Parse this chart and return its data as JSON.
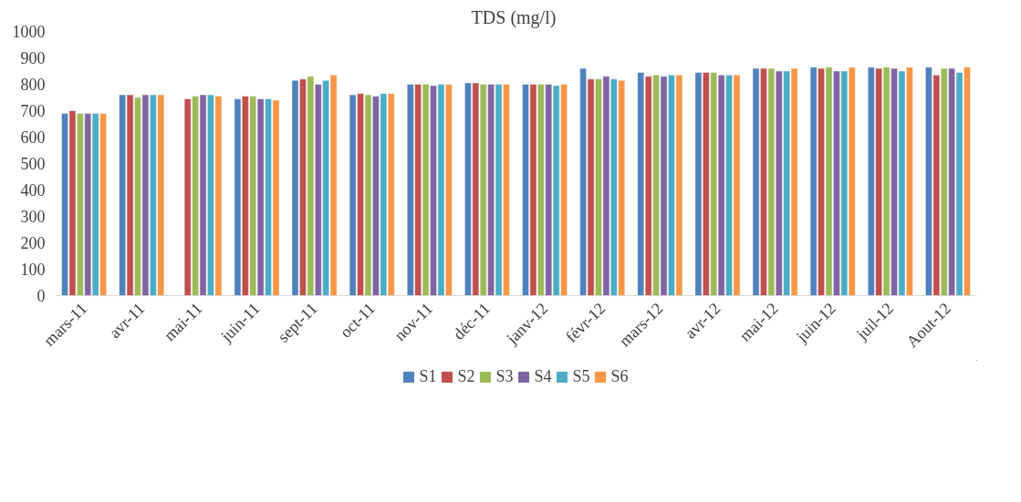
{
  "chart_data": {
    "type": "bar",
    "title": "TDS  (mg/l)",
    "categories": [
      "mars-11",
      "avr-11",
      "mai-11",
      "juin-11",
      "sept-11",
      "oct-11",
      "nov-11",
      "déc-11",
      "janv-12",
      "févr-12",
      "mars-12",
      "avr-12",
      "mai-12",
      "juin-12",
      "juil-12",
      "Aout-12"
    ],
    "series": [
      {
        "name": "S1",
        "color": "#4f81bd",
        "values": [
          690,
          760,
          null,
          745,
          815,
          760,
          800,
          805,
          800,
          860,
          845,
          845,
          860,
          865,
          865,
          865
        ]
      },
      {
        "name": "S2",
        "color": "#c0504d",
        "values": [
          700,
          760,
          745,
          755,
          820,
          765,
          800,
          805,
          800,
          820,
          830,
          845,
          860,
          860,
          860,
          835
        ]
      },
      {
        "name": "S3",
        "color": "#9bbb59",
        "values": [
          690,
          750,
          755,
          755,
          830,
          760,
          800,
          800,
          800,
          820,
          835,
          845,
          860,
          865,
          865,
          860
        ]
      },
      {
        "name": "S4",
        "color": "#8064a2",
        "values": [
          690,
          760,
          760,
          745,
          800,
          755,
          795,
          800,
          800,
          830,
          830,
          835,
          850,
          850,
          860,
          860
        ]
      },
      {
        "name": "S5",
        "color": "#4bacc6",
        "values": [
          690,
          760,
          760,
          745,
          815,
          765,
          800,
          800,
          795,
          820,
          835,
          835,
          850,
          850,
          850,
          845
        ]
      },
      {
        "name": "S6",
        "color": "#f79646",
        "values": [
          690,
          760,
          755,
          740,
          835,
          765,
          800,
          800,
          800,
          815,
          835,
          835,
          860,
          865,
          865,
          865
        ]
      }
    ],
    "ylim": [
      0,
      1000
    ],
    "yticks": [
      0,
      100,
      200,
      300,
      400,
      500,
      600,
      700,
      800,
      900,
      1000
    ],
    "grid": false,
    "legend": "bottom"
  }
}
